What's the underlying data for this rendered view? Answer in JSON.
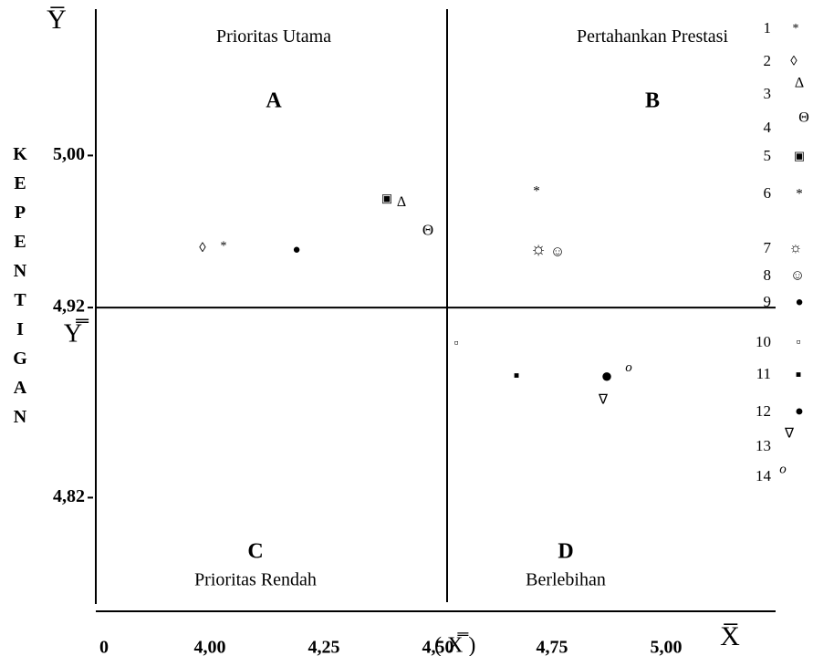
{
  "chart_data": {
    "type": "scatter",
    "y_axis_label": "Y̅",
    "x_axis_label": "X̅",
    "y_mean_label": "Y̿",
    "x_mean_label": "( X̿ )",
    "y_title": "KEPENTIGAN",
    "origin_label": "0",
    "annotations": [
      {
        "text": "Prioritas Utama",
        "x": 4.12,
        "y": 5.062
      },
      {
        "text": "A",
        "x": 4.12,
        "y": 5.028,
        "bold": true
      },
      {
        "text": "Pertahankan Prestasi",
        "x": 4.95,
        "y": 5.062
      },
      {
        "text": "B",
        "x": 4.95,
        "y": 5.028,
        "bold": true
      },
      {
        "text": "C",
        "x": 4.08,
        "y": 4.791,
        "bold": true
      },
      {
        "text": "Prioritas Rendah",
        "x": 4.08,
        "y": 4.776
      },
      {
        "text": "D",
        "x": 4.76,
        "y": 4.791,
        "bold": true
      },
      {
        "text": "Berlebihan",
        "x": 4.76,
        "y": 4.776
      }
    ],
    "xlim": [
      3.73,
      5.22
    ],
    "ylim": [
      4.765,
      5.077
    ],
    "xticks": [
      {
        "value": 4.0,
        "label": "4,00"
      },
      {
        "value": 4.25,
        "label": "4,25"
      },
      {
        "value": 4.5,
        "label": "4,50"
      },
      {
        "value": 4.75,
        "label": "4,75"
      },
      {
        "value": 5.0,
        "label": "5,00"
      }
    ],
    "yticks": [
      {
        "value": 5.0,
        "label": "5,00"
      },
      {
        "value": 4.92,
        "label": "4,92"
      },
      {
        "value": 4.82,
        "label": "4,82"
      }
    ],
    "x_mean": 4.5,
    "y_mean": 4.92,
    "color": "#000000",
    "series": [
      {
        "name": "1",
        "marker": "*",
        "marker_size": 14,
        "x": [
          4.01
        ],
        "values": [
          4.952
        ]
      },
      {
        "name": "2",
        "marker": "◊",
        "marker_size": 15,
        "x": [
          3.964
        ],
        "values": [
          4.951
        ]
      },
      {
        "name": "3",
        "marker": "Δ",
        "marker_size": 16,
        "x": [
          4.4
        ],
        "values": [
          4.975
        ]
      },
      {
        "name": "4",
        "marker": "Θ",
        "marker_size": 17,
        "x": [
          4.458
        ],
        "values": [
          4.96
        ]
      },
      {
        "name": "5",
        "marker": "▣",
        "marker_size": 13,
        "x": [
          4.368
        ],
        "values": [
          4.977
        ]
      },
      {
        "name": "6",
        "marker": "*",
        "marker_size": 15,
        "x": [
          4.696
        ],
        "values": [
          4.981
        ]
      },
      {
        "name": "7",
        "marker": "☼",
        "marker_size": 20,
        "x": [
          4.7
        ],
        "values": [
          4.95
        ]
      },
      {
        "name": "8",
        "marker": "☺",
        "marker_size": 16,
        "x": [
          4.742
        ],
        "values": [
          4.949
        ]
      },
      {
        "name": "9",
        "marker": "●",
        "marker_size": 15,
        "x": [
          4.17
        ],
        "values": [
          4.95
        ]
      },
      {
        "name": "10",
        "marker": "▫",
        "marker_size": 14,
        "x": [
          4.52
        ],
        "values": [
          4.901
        ]
      },
      {
        "name": "11",
        "marker": "■",
        "marker_size": 10,
        "x": [
          4.652
        ],
        "values": [
          4.884
        ]
      },
      {
        "name": "12",
        "marker": "●",
        "marker_size": 22,
        "x": [
          4.85
        ],
        "values": [
          4.883
        ]
      },
      {
        "name": "13",
        "marker": "∇",
        "marker_size": 15,
        "x": [
          4.842
        ],
        "values": [
          4.871
        ]
      },
      {
        "name": "14",
        "marker": "o",
        "marker_size": 15,
        "x": [
          4.898
        ],
        "values": [
          4.888
        ]
      }
    ]
  }
}
